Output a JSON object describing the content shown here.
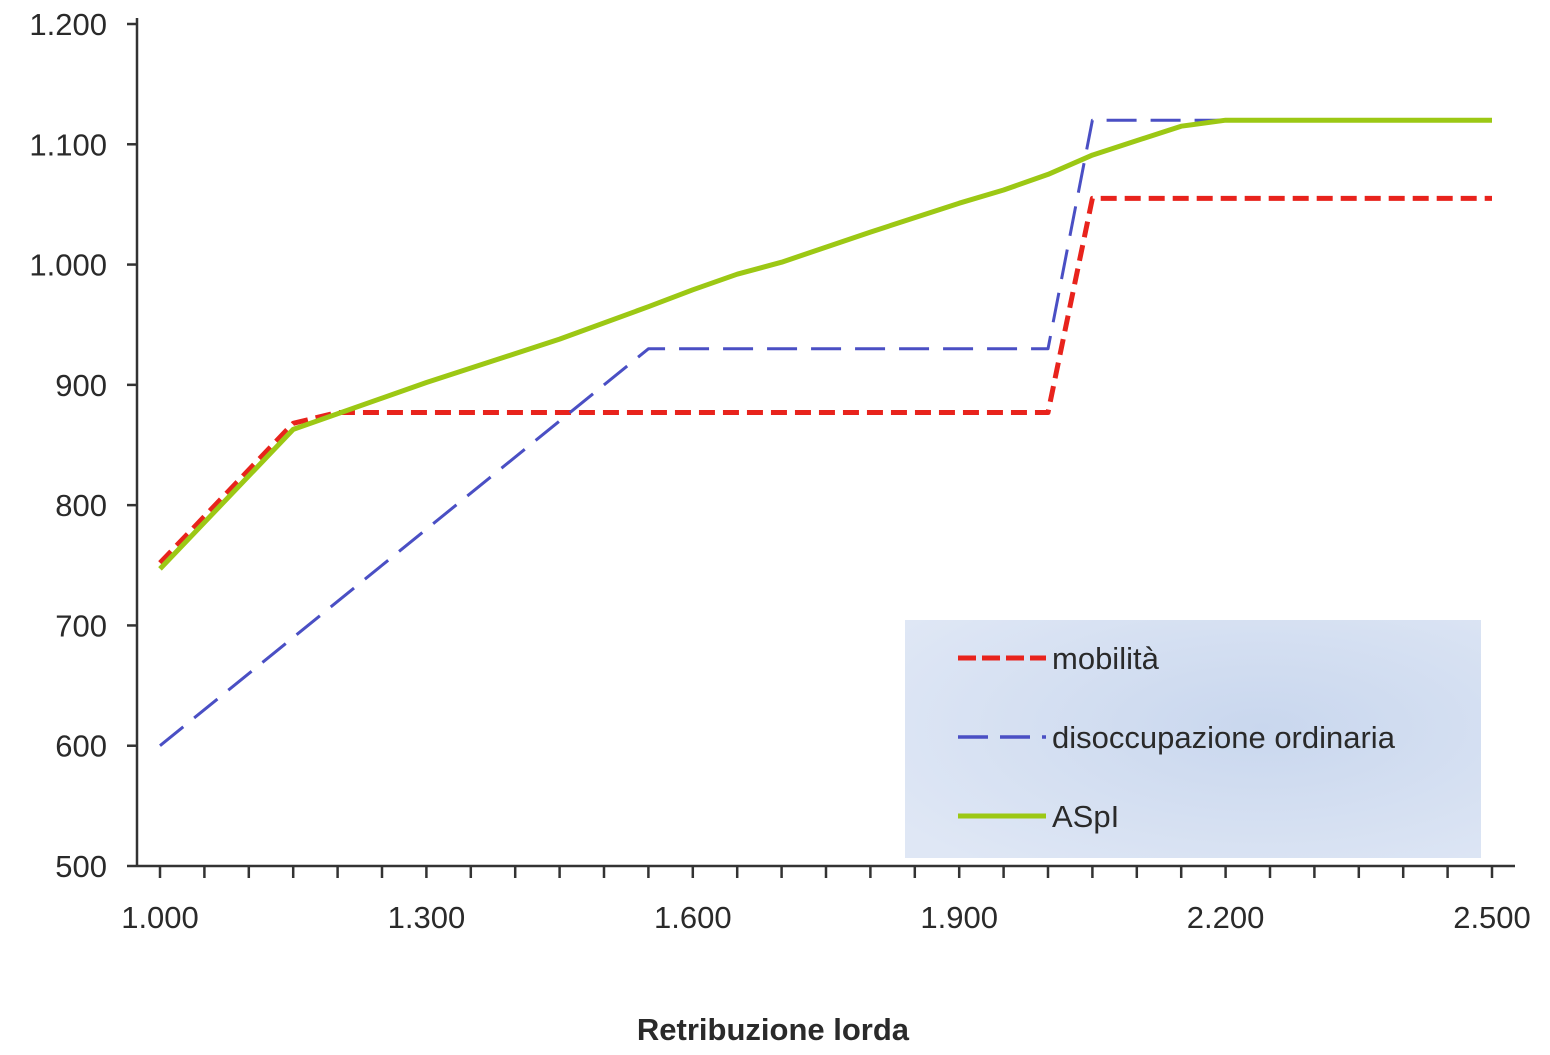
{
  "chart_data": {
    "type": "line",
    "title": "",
    "xlabel": "Retribuzione lorda",
    "ylabel": "",
    "xlim": [
      1000,
      2500
    ],
    "ylim": [
      500,
      1200
    ],
    "x_ticks": [
      1000,
      1300,
      1600,
      1900,
      2200,
      2500
    ],
    "x_tick_labels": [
      "1.000",
      "1.300",
      "1.600",
      "1.900",
      "2.200",
      "2.500"
    ],
    "y_ticks": [
      500,
      600,
      700,
      800,
      900,
      1000,
      1100,
      1200
    ],
    "y_tick_labels": [
      "500",
      "600",
      "700",
      "800",
      "900",
      "1.000",
      "1.100",
      "1.200"
    ],
    "x_minor_step": 50,
    "grid": false,
    "legend_position": "bottom-right",
    "series": [
      {
        "name": "mobilità",
        "color": "#e8231c",
        "style": "dashed",
        "x": [
          1000,
          1150,
          1200,
          2000,
          2050,
          2500
        ],
        "y": [
          752,
          868,
          877,
          877,
          1055,
          1055
        ]
      },
      {
        "name": "disoccupazione ordinaria",
        "color": "#4a4fc4",
        "style": "long-dashed",
        "x": [
          1000,
          1550,
          2000,
          2050,
          2500
        ],
        "y": [
          600,
          930,
          930,
          1120,
          1120
        ]
      },
      {
        "name": "ASpI",
        "color": "#9cc814",
        "style": "solid",
        "x": [
          1000,
          1150,
          1300,
          1400,
          1450,
          1550,
          1600,
          1650,
          1700,
          1800,
          1900,
          1950,
          2000,
          2050,
          2150,
          2200,
          2500
        ],
        "y": [
          747,
          863,
          902,
          926,
          938,
          965,
          979,
          992,
          1002,
          1027,
          1051,
          1062,
          1075,
          1091,
          1115,
          1120,
          1120
        ]
      }
    ]
  }
}
